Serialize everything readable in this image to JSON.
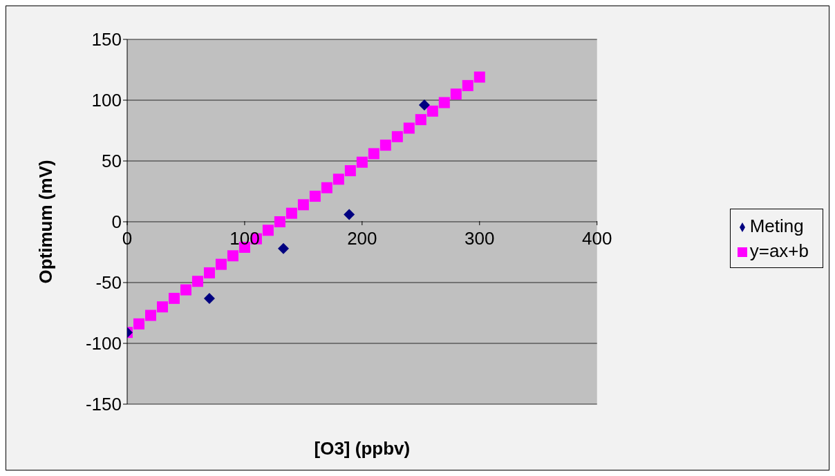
{
  "chart_data": {
    "type": "scatter",
    "xlabel": "[O3] (ppbv)",
    "ylabel": "Optimum (mV)",
    "xlim": [
      0,
      400
    ],
    "xticks": [
      0,
      100,
      200,
      300,
      400
    ],
    "ylim": [
      -150,
      150
    ],
    "yticks": [
      -150,
      -100,
      -50,
      0,
      50,
      100,
      150
    ],
    "grid": "y",
    "legend": "right",
    "series": [
      {
        "name": "y=ax+b",
        "color": "#ff00ff",
        "marker": "square",
        "x": [
          0,
          10,
          20,
          30,
          40,
          50,
          60,
          70,
          80,
          90,
          100,
          110,
          120,
          130,
          140,
          150,
          160,
          170,
          180,
          190,
          200,
          210,
          220,
          230,
          240,
          250,
          260,
          270,
          280,
          290,
          300
        ],
        "values": [
          -91,
          -84,
          -77,
          -70,
          -63,
          -56,
          -49,
          -42,
          -35,
          -28,
          -21,
          -14,
          -7,
          0,
          7,
          14,
          21,
          28,
          35,
          42,
          49,
          56,
          63,
          70,
          77,
          84,
          91,
          98,
          105,
          112,
          119
        ]
      },
      {
        "name": "Meting",
        "color": "#000080",
        "marker": "diamond",
        "x": [
          0,
          70,
          133,
          189,
          253
        ],
        "values": [
          -91,
          -63,
          -22,
          6,
          96
        ]
      }
    ]
  }
}
